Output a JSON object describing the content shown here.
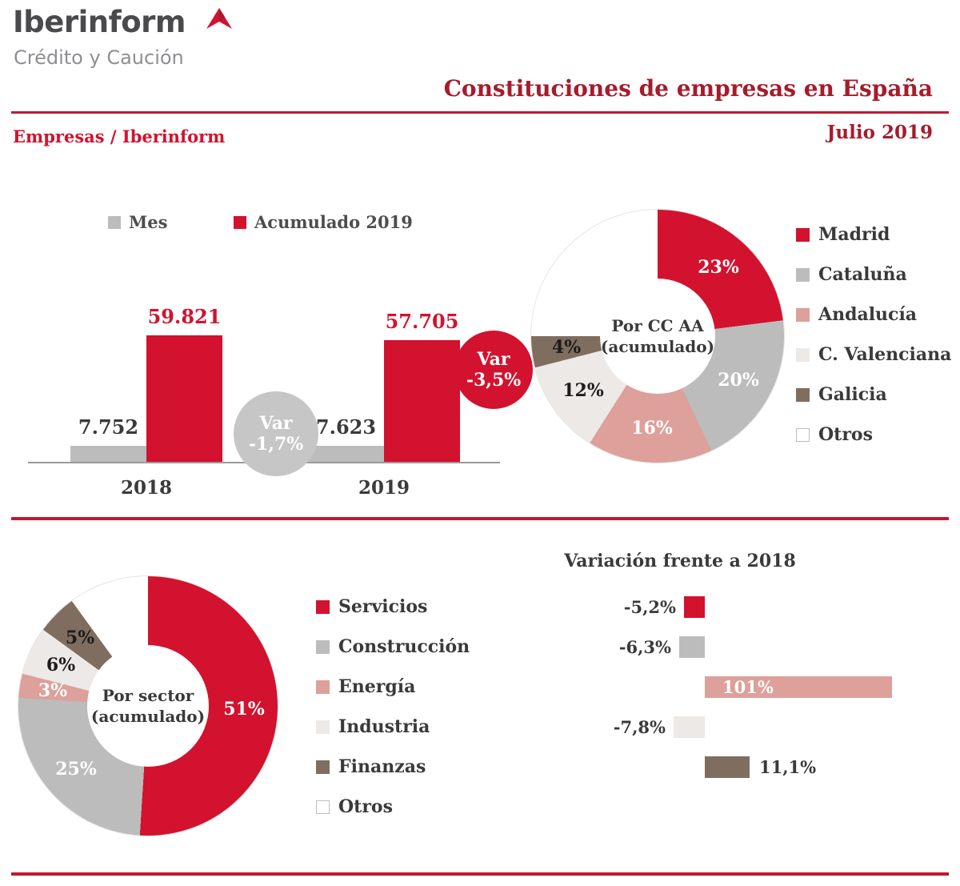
{
  "brand": {
    "name": "Iberinform",
    "tagline": "Crédito y Caución"
  },
  "header": {
    "title": "Constituciones de empresas en España",
    "source": "Empresas / Iberinform",
    "date": "Julio 2019"
  },
  "colors": {
    "accent_red": "#d2122e",
    "dark_red": "#a51c2c",
    "rule_red": "#c01a2e",
    "gray": "#bcbcbc",
    "pink": "#dda09a",
    "light_gray": "#ece9e6",
    "taupe": "#7f6e5f"
  },
  "chart_data": [
    {
      "id": "constituciones-mensuales",
      "type": "bar",
      "categories": [
        "2018",
        "2019"
      ],
      "series": [
        {
          "name": "Mes",
          "color": "#bcbcbc",
          "label_color": "#3a3a3a",
          "values": [
            7752,
            7623
          ],
          "value_labels": [
            "7.752",
            "7.623"
          ]
        },
        {
          "name": "Acumulado 2019",
          "color": "#d2122e",
          "label_color": "#d2122e",
          "values": [
            59821,
            57705
          ],
          "value_labels": [
            "59.821",
            "57.705"
          ]
        }
      ],
      "ylim": [
        0,
        59821
      ],
      "grid": false,
      "legend_position": "top",
      "annotations": [
        {
          "line1": "Var",
          "line2": "-1,7%",
          "color": "#c6c6c6",
          "text_color": "#ffffff"
        },
        {
          "line1": "Var",
          "line2": "-3,5%",
          "color": "#d2122e",
          "text_color": "#ffffff"
        }
      ]
    },
    {
      "id": "por-ccaa",
      "type": "pie",
      "center_label": [
        "Por CC AA",
        "(acumulado)"
      ],
      "legend_position": "right",
      "segments": [
        {
          "label": "Madrid",
          "value": 23,
          "display": "23%",
          "color": "#d2122e",
          "label_color": "#ffffff"
        },
        {
          "label": "Cataluña",
          "value": 20,
          "display": "20%",
          "color": "#bcbcbc",
          "label_color": "#ffffff"
        },
        {
          "label": "Andalucía",
          "value": 16,
          "display": "16%",
          "color": "#dda09a",
          "label_color": "#ffffff"
        },
        {
          "label": "C. Valenciana",
          "value": 12,
          "display": "12%",
          "color": "#ece9e6",
          "label_color": "#1c1c1c"
        },
        {
          "label": "Galicia",
          "value": 4,
          "display": "4%",
          "color": "#7f6e5f",
          "label_color": "#1c1c1c"
        },
        {
          "label": "Otros",
          "value": 25,
          "display": "",
          "color": "#ffffff",
          "label_color": "#1c1c1c"
        }
      ]
    },
    {
      "id": "por-sector",
      "type": "pie",
      "center_label": [
        "Por sector",
        "(acumulado)"
      ],
      "legend_position": "right",
      "segments": [
        {
          "label": "Servicios",
          "value": 51,
          "display": "51%",
          "color": "#d2122e",
          "label_color": "#ffffff"
        },
        {
          "label": "Construcción",
          "value": 25,
          "display": "25%",
          "color": "#bcbcbc",
          "label_color": "#ffffff"
        },
        {
          "label": "Energía",
          "value": 3,
          "display": "3%",
          "color": "#dda09a",
          "label_color": "#ffffff"
        },
        {
          "label": "Industria",
          "value": 6,
          "display": "6%",
          "color": "#ece9e6",
          "label_color": "#1c1c1c"
        },
        {
          "label": "Finanzas",
          "value": 5,
          "display": "5%",
          "color": "#7f6e5f",
          "label_color": "#1c1c1c"
        },
        {
          "label": "Otros",
          "value": 10,
          "display": "",
          "color": "#ffffff",
          "label_color": "#1c1c1c"
        }
      ]
    },
    {
      "id": "variacion-2018",
      "type": "bar",
      "orientation": "horizontal",
      "title": "Variación frente a 2018",
      "categories": [
        "Servicios",
        "Construcción",
        "Energía",
        "Industria",
        "Finanzas"
      ],
      "values": [
        -5.2,
        -6.3,
        101,
        -7.8,
        11.1
      ],
      "value_labels": [
        "-5,2%",
        "-6,3%",
        "101%",
        "-7,8%",
        "11,1%"
      ],
      "colors": [
        "#d2122e",
        "#bcbcbc",
        "#dda09a",
        "#ece9e6",
        "#7f6e5f"
      ],
      "label_positions": [
        "left",
        "left",
        "inside",
        "left",
        "right"
      ]
    }
  ]
}
